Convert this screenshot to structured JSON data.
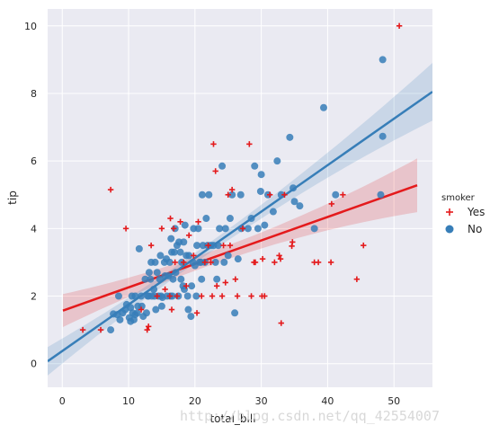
{
  "chart_data": {
    "type": "scatter",
    "xlabel": "total_bill",
    "ylabel": "tip",
    "xlim": [
      -2.2,
      55.8
    ],
    "ylim": [
      -0.7,
      10.5
    ],
    "xticks": [
      "0",
      "10",
      "20",
      "30",
      "40",
      "50"
    ],
    "xtick_values": [
      0,
      10,
      20,
      30,
      40,
      50
    ],
    "yticks": [
      "0",
      "2",
      "4",
      "6",
      "8",
      "10"
    ],
    "ytick_values": [
      0,
      2,
      4,
      6,
      8,
      10
    ],
    "grid": true,
    "legend_title": "smoker",
    "legend_placement": "right",
    "series": [
      {
        "name": "Yes",
        "marker": "plus",
        "color": "#e41a1c",
        "fit": {
          "x_start": 0.1,
          "x_end": 53.5,
          "y_start": 1.57,
          "y_end": 5.28
        },
        "points": [
          [
            3.1,
            1.0
          ],
          [
            5.8,
            1.0
          ],
          [
            7.3,
            5.15
          ],
          [
            9.6,
            4.0
          ],
          [
            11.9,
            1.6
          ],
          [
            12.8,
            1.0
          ],
          [
            13.0,
            1.1
          ],
          [
            13.4,
            3.5
          ],
          [
            14.3,
            2.0
          ],
          [
            15.0,
            4.0
          ],
          [
            15.5,
            2.2
          ],
          [
            16.2,
            2.0
          ],
          [
            16.3,
            4.3
          ],
          [
            16.5,
            1.6
          ],
          [
            16.8,
            4.0
          ],
          [
            17.0,
            3.0
          ],
          [
            17.3,
            2.0
          ],
          [
            17.8,
            4.2
          ],
          [
            18.3,
            3.0
          ],
          [
            18.7,
            2.3
          ],
          [
            19.1,
            3.8
          ],
          [
            19.8,
            3.2
          ],
          [
            20.3,
            1.5
          ],
          [
            20.5,
            4.2
          ],
          [
            21.0,
            2.0
          ],
          [
            21.5,
            3.0
          ],
          [
            22.0,
            3.5
          ],
          [
            22.4,
            3.0
          ],
          [
            22.6,
            2.0
          ],
          [
            22.8,
            6.5
          ],
          [
            23.1,
            5.7
          ],
          [
            23.3,
            2.3
          ],
          [
            24.1,
            2.0
          ],
          [
            24.3,
            3.5
          ],
          [
            24.6,
            2.4
          ],
          [
            25.0,
            5.0
          ],
          [
            25.3,
            3.5
          ],
          [
            25.6,
            5.15
          ],
          [
            26.1,
            2.5
          ],
          [
            26.4,
            2.0
          ],
          [
            27.2,
            4.0
          ],
          [
            28.2,
            6.5
          ],
          [
            28.5,
            2.0
          ],
          [
            28.9,
            3.0
          ],
          [
            29.1,
            3.0
          ],
          [
            30.1,
            2.0
          ],
          [
            30.2,
            3.1
          ],
          [
            30.5,
            2.0
          ],
          [
            31.3,
            5.0
          ],
          [
            32.0,
            3.0
          ],
          [
            32.7,
            3.2
          ],
          [
            32.9,
            3.1
          ],
          [
            33.0,
            1.2
          ],
          [
            33.5,
            5.0
          ],
          [
            34.6,
            3.48
          ],
          [
            34.7,
            3.6
          ],
          [
            38.0,
            3.0
          ],
          [
            38.6,
            3.0
          ],
          [
            40.5,
            3.0
          ],
          [
            40.6,
            4.73
          ],
          [
            42.3,
            5.0
          ],
          [
            44.4,
            2.5
          ],
          [
            45.4,
            3.5
          ],
          [
            50.8,
            10.0
          ]
        ]
      },
      {
        "name": "No",
        "marker": "circle",
        "color": "#377eb8",
        "fit": {
          "x_start": -2.2,
          "x_end": 55.8,
          "y_start": 0.07,
          "y_end": 8.05
        },
        "points": [
          [
            7.3,
            1.0
          ],
          [
            7.7,
            1.47
          ],
          [
            8.3,
            1.45
          ],
          [
            8.5,
            2.0
          ],
          [
            8.7,
            1.3
          ],
          [
            9.1,
            1.5
          ],
          [
            9.5,
            1.6
          ],
          [
            9.7,
            1.75
          ],
          [
            10.1,
            1.36
          ],
          [
            10.3,
            1.66
          ],
          [
            10.3,
            1.25
          ],
          [
            10.5,
            2.0
          ],
          [
            10.6,
            1.5
          ],
          [
            10.8,
            1.3
          ],
          [
            11.0,
            1.45
          ],
          [
            11.0,
            2.0
          ],
          [
            11.3,
            1.5
          ],
          [
            11.4,
            1.7
          ],
          [
            11.6,
            3.4
          ],
          [
            11.9,
            2.0
          ],
          [
            12.0,
            1.7
          ],
          [
            12.2,
            1.4
          ],
          [
            12.5,
            2.5
          ],
          [
            12.7,
            1.5
          ],
          [
            12.9,
            2.0
          ],
          [
            13.0,
            2.0
          ],
          [
            13.1,
            2.7
          ],
          [
            13.3,
            2.5
          ],
          [
            13.4,
            3.0
          ],
          [
            13.5,
            2.0
          ],
          [
            13.8,
            2.2
          ],
          [
            13.9,
            2.0
          ],
          [
            14.0,
            3.0
          ],
          [
            14.1,
            1.6
          ],
          [
            14.3,
            2.7
          ],
          [
            14.5,
            2.0
          ],
          [
            14.7,
            2.5
          ],
          [
            14.8,
            3.2
          ],
          [
            14.9,
            2.0
          ],
          [
            15.0,
            1.7
          ],
          [
            15.1,
            1.96
          ],
          [
            15.4,
            3.0
          ],
          [
            15.5,
            2.6
          ],
          [
            15.7,
            3.1
          ],
          [
            15.8,
            2.0
          ],
          [
            16.0,
            2.6
          ],
          [
            16.2,
            3.0
          ],
          [
            16.3,
            2.0
          ],
          [
            16.4,
            3.7
          ],
          [
            16.5,
            3.3
          ],
          [
            16.6,
            2.0
          ],
          [
            16.7,
            2.5
          ],
          [
            16.9,
            3.3
          ],
          [
            17.0,
            4.0
          ],
          [
            17.1,
            2.7
          ],
          [
            17.3,
            3.5
          ],
          [
            17.5,
            2.0
          ],
          [
            17.6,
            3.6
          ],
          [
            17.8,
            3.3
          ],
          [
            17.9,
            2.5
          ],
          [
            18.0,
            3.0
          ],
          [
            18.2,
            2.3
          ],
          [
            18.3,
            3.6
          ],
          [
            18.4,
            2.2
          ],
          [
            18.5,
            4.1
          ],
          [
            18.7,
            3.2
          ],
          [
            18.9,
            2.0
          ],
          [
            19.0,
            1.6
          ],
          [
            19.1,
            3.2
          ],
          [
            19.4,
            1.4
          ],
          [
            19.5,
            2.3
          ],
          [
            19.7,
            3.0
          ],
          [
            19.8,
            4.0
          ],
          [
            20.0,
            2.9
          ],
          [
            20.2,
            2.0
          ],
          [
            20.3,
            3.5
          ],
          [
            20.5,
            4.0
          ],
          [
            20.7,
            3.0
          ],
          [
            20.9,
            3.0
          ],
          [
            21.0,
            2.5
          ],
          [
            21.1,
            5.0
          ],
          [
            21.2,
            3.5
          ],
          [
            21.5,
            3.0
          ],
          [
            21.7,
            4.3
          ],
          [
            21.9,
            3.5
          ],
          [
            22.1,
            5.0
          ],
          [
            22.4,
            3.5
          ],
          [
            22.8,
            3.5
          ],
          [
            23.1,
            3.0
          ],
          [
            23.3,
            2.5
          ],
          [
            23.5,
            3.5
          ],
          [
            23.7,
            4.0
          ],
          [
            24.1,
            5.85
          ],
          [
            24.4,
            3.0
          ],
          [
            24.6,
            4.0
          ],
          [
            25.0,
            3.2
          ],
          [
            25.3,
            4.3
          ],
          [
            25.6,
            5.0
          ],
          [
            26.0,
            1.5
          ],
          [
            26.5,
            3.1
          ],
          [
            26.9,
            5.0
          ],
          [
            27.0,
            4.0
          ],
          [
            28.0,
            4.0
          ],
          [
            28.5,
            4.3
          ],
          [
            29.0,
            5.85
          ],
          [
            29.5,
            4.0
          ],
          [
            29.9,
            5.1
          ],
          [
            30.0,
            5.6
          ],
          [
            30.5,
            4.1
          ],
          [
            31.0,
            5.0
          ],
          [
            31.8,
            4.5
          ],
          [
            32.4,
            6.0
          ],
          [
            33.0,
            5.0
          ],
          [
            34.3,
            6.7
          ],
          [
            34.8,
            5.2
          ],
          [
            35.0,
            4.8
          ],
          [
            35.8,
            4.67
          ],
          [
            38.0,
            4.0
          ],
          [
            39.4,
            7.58
          ],
          [
            41.2,
            5.0
          ],
          [
            48.0,
            5.0
          ],
          [
            48.3,
            6.73
          ],
          [
            48.3,
            9.0
          ]
        ]
      }
    ]
  },
  "watermark": "http://blog.csdn.net/qq_42554007"
}
